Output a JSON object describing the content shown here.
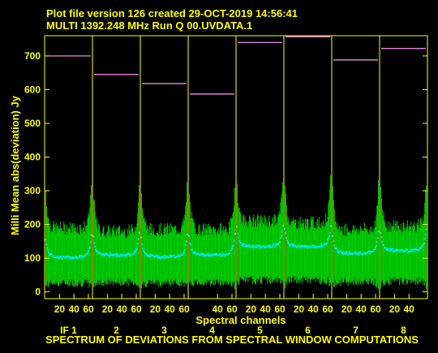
{
  "header": {
    "line1": "Plot file version 126  created 29-OCT-2019 14:56:41",
    "line2": "MULTI 1392.248 MHz  Run Q 00.UVDATA.1"
  },
  "footer": {
    "caption": "SPECTRUM OF DEVIATIONS FROM SPECTRAL WINDOW COMPUTATIONS"
  },
  "colors": {
    "background": "#000000",
    "axis": "#ffff00",
    "bars": "#00cc00",
    "mean": "#00e5e5",
    "reference": "#ff99ff"
  },
  "chart_data": {
    "type": "bar",
    "xlabel": "Spectral channels",
    "ylabel": "Milli Mean abs(deviation) Jy",
    "ylim": [
      -20,
      760
    ],
    "yticks": [
      0,
      100,
      200,
      300,
      400,
      500,
      600,
      700
    ],
    "channels_per_panel": 64,
    "panels": [
      {
        "label": "IF 1",
        "xticks": [
          "20",
          "40",
          "60"
        ],
        "reference": 700,
        "base_mean": 108,
        "base_bar": 190,
        "left_edge": 0,
        "right_edge": 0
      },
      {
        "label": "2",
        "xticks": [
          "20",
          "40",
          "60"
        ],
        "reference": 645,
        "base_mean": 115,
        "base_bar": 180,
        "left_edge": 0,
        "right_edge": 0
      },
      {
        "label": "3",
        "xticks": [
          "20",
          "40",
          "60"
        ],
        "reference": 618,
        "base_mean": 110,
        "base_bar": 185,
        "left_edge": 0,
        "right_edge": 0
      },
      {
        "label": "4",
        "xticks": [
          "40",
          "60"
        ],
        "reference": 587,
        "base_mean": 115,
        "base_bar": 185,
        "left_edge": 0,
        "right_edge": 0
      },
      {
        "label": "5",
        "xticks": [
          "20",
          "40",
          "60"
        ],
        "reference": 740,
        "base_mean": 140,
        "base_bar": 210,
        "left_edge": 0,
        "right_edge": 0
      },
      {
        "label": "6",
        "xticks": [
          "20",
          "40",
          "60"
        ],
        "reference": 757,
        "base_mean": 140,
        "base_bar": 205,
        "left_edge": 0,
        "right_edge": 0
      },
      {
        "label": "7",
        "xticks": [
          "20",
          "40",
          "60"
        ],
        "reference": 688,
        "base_mean": 120,
        "base_bar": 185,
        "left_edge": 0,
        "right_edge": 0
      },
      {
        "label": "8",
        "xticks": [
          "20",
          "40"
        ],
        "reference": 722,
        "base_mean": 128,
        "base_bar": 195,
        "left_edge": 0,
        "right_edge": 0
      }
    ]
  }
}
